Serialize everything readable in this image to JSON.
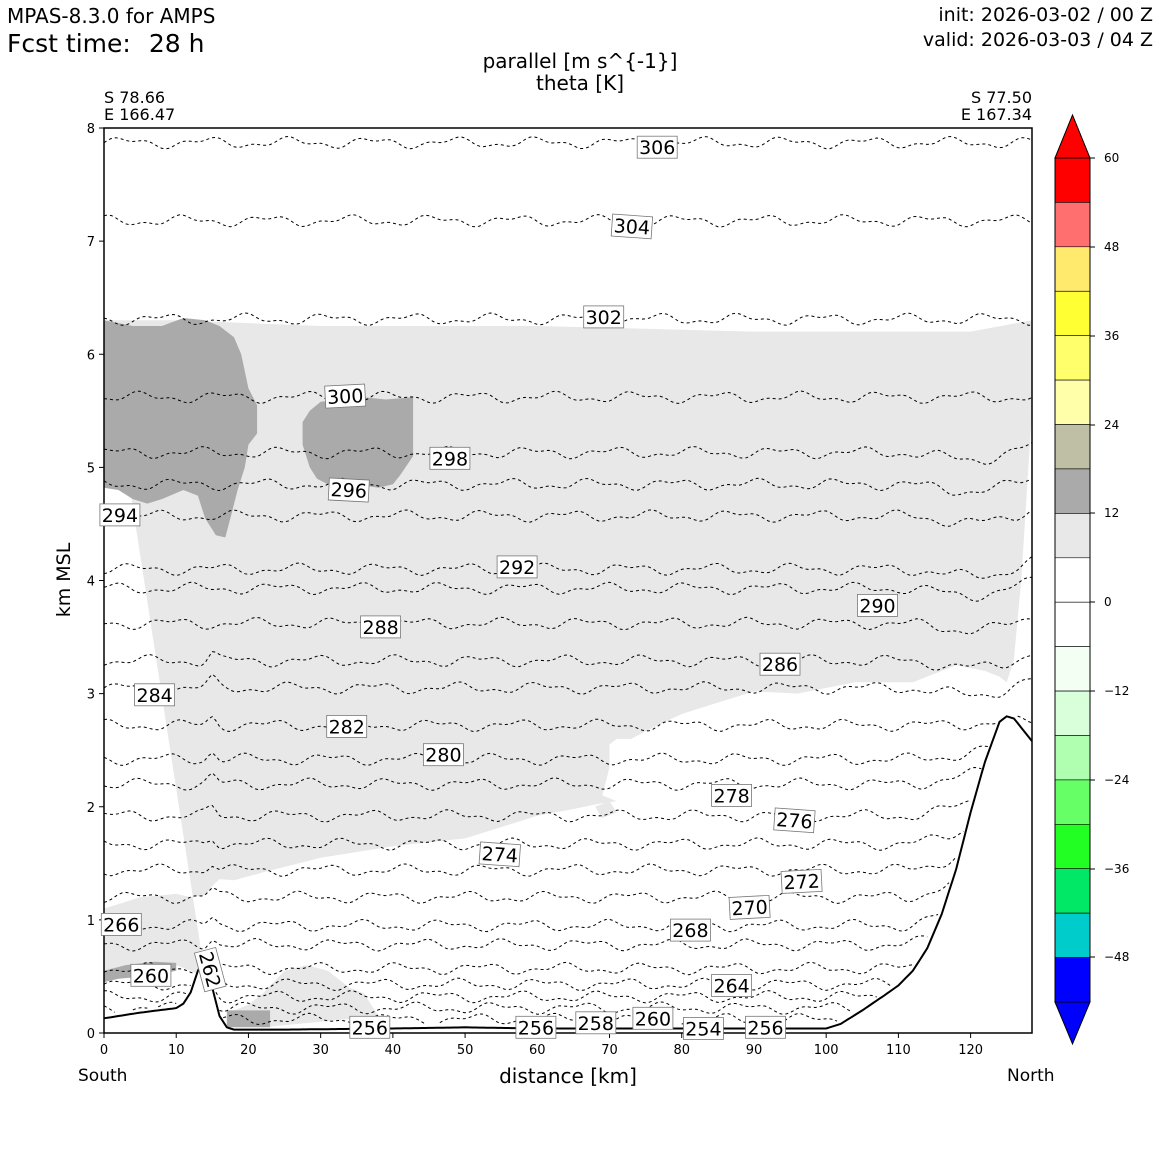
{
  "header": {
    "model": "MPAS-8.3.0 for AMPS",
    "fcst_label": "Fcst time:",
    "fcst_value": "28 h",
    "init": "init: 2026-03-02 / 00 Z",
    "valid": "valid: 2026-03-03 / 04 Z",
    "title_line1": "parallel [m s^{-1}]",
    "title_line2": "theta [K]",
    "left_lat": "S 78.66",
    "left_lon": "E 166.47",
    "right_lat": "S 77.50",
    "right_lon": "E 167.34",
    "south": "South",
    "north": "North"
  },
  "colors": {
    "shade_10_12": "#e8e8e8",
    "shade_12_18": "#aaaaaa",
    "terrain_line": "#000000"
  },
  "chart_data": {
    "type": "heatmap",
    "xlabel": "distance [km]",
    "ylabel": "km MSL",
    "xlim": [
      0,
      128.5
    ],
    "ylim": [
      0,
      8
    ],
    "xticks": [
      0,
      10,
      20,
      30,
      40,
      50,
      60,
      70,
      80,
      90,
      100,
      110,
      120
    ],
    "yticks": [
      0,
      1,
      2,
      3,
      4,
      5,
      6,
      7,
      8
    ],
    "terrain": {
      "x": [
        0,
        5,
        10,
        11,
        12,
        13,
        14,
        15,
        16,
        17,
        18,
        20,
        25,
        40,
        50,
        60,
        80,
        90,
        100,
        102,
        105,
        108,
        110,
        112,
        114,
        116,
        118,
        120,
        122,
        124,
        125,
        126,
        127,
        128.5
      ],
      "y": [
        0.13,
        0.18,
        0.22,
        0.26,
        0.36,
        0.55,
        0.66,
        0.4,
        0.15,
        0.05,
        0.03,
        0.03,
        0.03,
        0.04,
        0.05,
        0.04,
        0.04,
        0.04,
        0.04,
        0.08,
        0.2,
        0.33,
        0.42,
        0.55,
        0.75,
        1.05,
        1.45,
        1.95,
        2.4,
        2.75,
        2.8,
        2.78,
        2.7,
        2.58
      ]
    },
    "shading_levels": [
      60,
      48,
      36,
      24,
      12,
      0,
      -12,
      -24,
      -36,
      -48
    ],
    "colorbar_colors": [
      "#ff0000",
      "#ff6f6f",
      "#ffea6e",
      "#ffff34",
      "#ffff6b",
      "#ffffaa",
      "#bfbfa6",
      "#aaaaaa",
      "#e8e8e8",
      "#ffffff",
      "#ffffff",
      "#f4fff4",
      "#d9ffda",
      "#b0ffb0",
      "#66ff66",
      "#22ff22",
      "#00e866",
      "#00cccc",
      "#0000ff"
    ],
    "contour_label_values": [
      "306",
      "304",
      "302",
      "300",
      "298",
      "296",
      "294",
      "292",
      "290",
      "288",
      "286",
      "284",
      "282",
      "280",
      "278",
      "276",
      "274",
      "272",
      "270",
      "268",
      "266",
      "264",
      "262",
      "260",
      "260",
      "258",
      "256",
      "256",
      "256",
      "254"
    ],
    "theta_contours": [
      {
        "value": 306,
        "baseline": 7.87
      },
      {
        "value": 304,
        "baseline": 7.18
      },
      {
        "value": 302,
        "baseline": 6.31
      },
      {
        "value": 300,
        "baseline": 5.62
      },
      {
        "value": 298,
        "baseline": 5.13
      },
      {
        "value": 296,
        "baseline": 4.85
      },
      {
        "value": 294,
        "baseline": 4.57
      },
      {
        "value": 292,
        "baseline": 4.1
      },
      {
        "value": 290,
        "baseline": 3.93
      },
      {
        "value": 288,
        "baseline": 3.62
      },
      {
        "value": 286,
        "baseline": 3.29
      },
      {
        "value": 284,
        "baseline": 3.05
      },
      {
        "value": 282,
        "baseline": 2.72
      },
      {
        "value": 280,
        "baseline": 2.42
      },
      {
        "value": 278,
        "baseline": 2.2
      },
      {
        "value": 276,
        "baseline": 1.92
      },
      {
        "value": 274,
        "baseline": 1.67
      },
      {
        "value": 272,
        "baseline": 1.44
      },
      {
        "value": 270,
        "baseline": 1.2
      },
      {
        "value": 268,
        "baseline": 0.95
      },
      {
        "value": 266,
        "baseline": 0.78
      },
      {
        "value": 264,
        "baseline": 0.57
      },
      {
        "value": 262,
        "baseline": 0.43
      },
      {
        "value": 260,
        "baseline": 0.32
      },
      {
        "value": 258,
        "baseline": 0.22
      },
      {
        "value": 256,
        "baseline": 0.12
      }
    ],
    "labels": [
      {
        "text": "306",
        "x": 76.6,
        "y": 7.83,
        "rot": 0
      },
      {
        "text": "304",
        "x": 73.1,
        "y": 7.13,
        "rot": 4
      },
      {
        "text": "302",
        "x": 69.2,
        "y": 6.33,
        "rot": 0
      },
      {
        "text": "300",
        "x": 33.4,
        "y": 5.63,
        "rot": -3
      },
      {
        "text": "298",
        "x": 47.9,
        "y": 5.08,
        "rot": 0
      },
      {
        "text": "296",
        "x": 33.9,
        "y": 4.8,
        "rot": 3
      },
      {
        "text": "294",
        "x": 2.2,
        "y": 4.58,
        "rot": 0
      },
      {
        "text": "292",
        "x": 57.2,
        "y": 4.12,
        "rot": 0
      },
      {
        "text": "290",
        "x": 107.1,
        "y": 3.78,
        "rot": 0
      },
      {
        "text": "288",
        "x": 38.3,
        "y": 3.59,
        "rot": 0
      },
      {
        "text": "286",
        "x": 93.6,
        "y": 3.26,
        "rot": 0
      },
      {
        "text": "284",
        "x": 7.0,
        "y": 2.99,
        "rot": 0
      },
      {
        "text": "282",
        "x": 33.6,
        "y": 2.71,
        "rot": 0
      },
      {
        "text": "280",
        "x": 47.0,
        "y": 2.46,
        "rot": 0
      },
      {
        "text": "278",
        "x": 86.9,
        "y": 2.1,
        "rot": 0
      },
      {
        "text": "276",
        "x": 95.6,
        "y": 1.88,
        "rot": 4
      },
      {
        "text": "274",
        "x": 54.8,
        "y": 1.58,
        "rot": 4
      },
      {
        "text": "272",
        "x": 96.6,
        "y": 1.34,
        "rot": -3
      },
      {
        "text": "270",
        "x": 89.4,
        "y": 1.11,
        "rot": -3
      },
      {
        "text": "268",
        "x": 81.2,
        "y": 0.91,
        "rot": 0
      },
      {
        "text": "266",
        "x": 2.4,
        "y": 0.96,
        "rot": 0
      },
      {
        "text": "264",
        "x": 86.9,
        "y": 0.42,
        "rot": 0
      },
      {
        "text": "262",
        "x": 14.7,
        "y": 0.56,
        "rot": 75
      },
      {
        "text": "260",
        "x": 6.5,
        "y": 0.51,
        "rot": 0
      },
      {
        "text": "260",
        "x": 76.0,
        "y": 0.13,
        "rot": 0
      },
      {
        "text": "258",
        "x": 68.1,
        "y": 0.09,
        "rot": 0
      },
      {
        "text": "256",
        "x": 36.8,
        "y": 0.05,
        "rot": 0
      },
      {
        "text": "256",
        "x": 59.8,
        "y": 0.05,
        "rot": 0
      },
      {
        "text": "256",
        "x": 91.6,
        "y": 0.05,
        "rot": 0
      },
      {
        "text": "254",
        "x": 83.0,
        "y": 0.04,
        "rot": 0
      }
    ]
  }
}
